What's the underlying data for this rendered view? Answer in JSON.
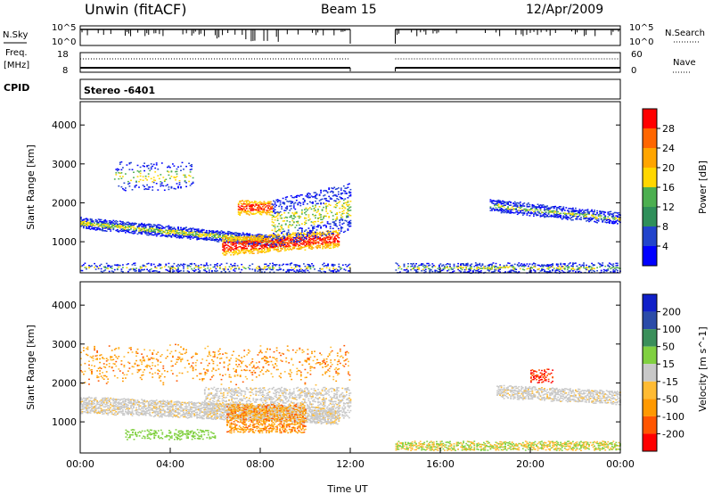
{
  "header": {
    "station": "Unwin (fitACF)",
    "beam": "Beam 15",
    "date": "12/Apr/2009"
  },
  "summary": {
    "nsky_label": "N.Sky",
    "nsky_ticks": [
      "10^5",
      "10^0"
    ],
    "freq_label_1": "Freq.",
    "freq_label_2": "[MHz]",
    "freq_ticks": [
      "18",
      "8"
    ],
    "cpid_label": "CPID",
    "cpid_value": "Stereo -6401",
    "nsearch_label": "N.Search",
    "nave_label": "Nave",
    "right_ticks_top": [
      "10^5",
      "10^0"
    ],
    "right_ticks_mid": [
      "60",
      "0"
    ]
  },
  "colors": {
    "power": [
      "#0000ff",
      "#2244cc",
      "#2f8f5a",
      "#4caf50",
      "#ffd700",
      "#ffa500",
      "#ff6600",
      "#ff0000"
    ],
    "velocity": [
      "#ff0000",
      "#ff5500",
      "#ff9900",
      "#ffbb33",
      "#c8c8c8",
      "#80d040",
      "#3a8f5a",
      "#2b4ca8",
      "#1020c8"
    ]
  },
  "chart_data": [
    {
      "type": "heatmap",
      "name": "power",
      "xlabel": "",
      "ylabel": "Slant Range [km]",
      "x_range_hours": [
        0,
        24
      ],
      "ylim": [
        200,
        4600
      ],
      "y_ticks": [
        1000,
        2000,
        3000,
        4000
      ],
      "y_tick_labels": [
        "1000",
        "2000",
        "3000",
        "4000"
      ],
      "colorbar_label": "Power [dB]",
      "colorbar_ticks": [
        "4",
        "8",
        "12",
        "16",
        "20",
        "24",
        "28"
      ],
      "colorbar_range": [
        0,
        32
      ]
    },
    {
      "type": "heatmap",
      "name": "velocity",
      "xlabel": "Time UT",
      "ylabel": "Slant Range [km]",
      "x_range_hours": [
        0,
        24
      ],
      "ylim": [
        200,
        4600
      ],
      "y_ticks": [
        1000,
        2000,
        3000,
        4000
      ],
      "y_tick_labels": [
        "1000",
        "2000",
        "3000",
        "4000"
      ],
      "x_tick_labels": [
        "00:00",
        "04:00",
        "08:00",
        "12:00",
        "16:00",
        "20:00",
        "00:00"
      ],
      "colorbar_label": "Velocity [m s^-1]",
      "colorbar_ticks": [
        "-200",
        "-100",
        "-50",
        "-15",
        "15",
        "50",
        "100",
        "200"
      ]
    }
  ]
}
